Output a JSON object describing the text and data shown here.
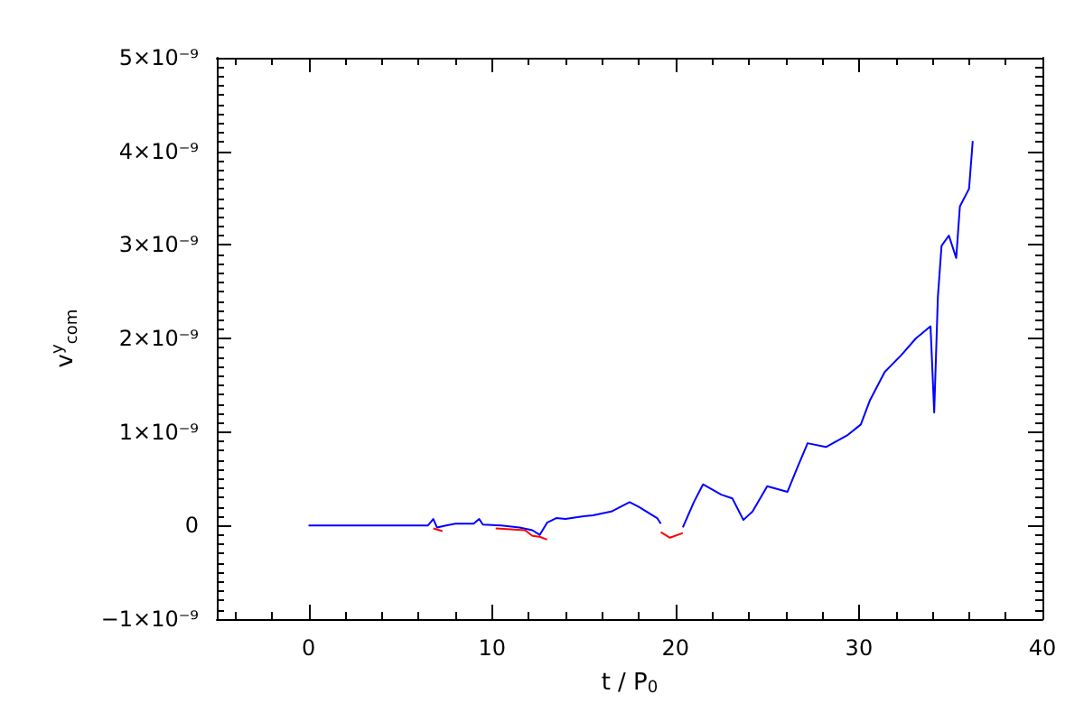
{
  "chart_data": {
    "type": "line",
    "xlabel": "t / P$_{0}$",
    "ylabel": "v$^{y}$$_{com}$",
    "xlim": [
      -5,
      40
    ],
    "xticks": [
      0,
      10,
      20,
      30,
      40
    ],
    "ylim": [
      -1e-09,
      5e-09
    ],
    "yticks": [
      {
        "value": -1e-09,
        "label": "−1×10⁻⁹"
      },
      0,
      {
        "value": 1e-09,
        "label": "1×10⁻⁹"
      },
      {
        "value": 2e-09,
        "label": "2×10⁻⁹"
      },
      {
        "value": 3e-09,
        "label": "3×10⁻⁹"
      },
      {
        "value": 4e-09,
        "label": "4×10⁻⁹"
      },
      {
        "value": 5e-09,
        "label": "5×10⁻⁹"
      }
    ],
    "grid": false,
    "marker": "none",
    "line_style": "solid",
    "series": [
      {
        "color": "#0000ff",
        "x": [
          0,
          3,
          6.5,
          6.8,
          7.0,
          7.5,
          8,
          9,
          9.3,
          9.5,
          10.5,
          11.5,
          12.2,
          12.6,
          13,
          13.5,
          14,
          15,
          15.5,
          16.5,
          17.5,
          18,
          19,
          19.2,
          19.6,
          20.4,
          21,
          21.5,
          22.5,
          23.1,
          23.7,
          24.2,
          25,
          26.1,
          26.6,
          27.2,
          28.2,
          29.4,
          30.1,
          30.6,
          31.4,
          32.3,
          33.1,
          33.9,
          34.1,
          34.3,
          34.5,
          34.9,
          35.3,
          35.5,
          36,
          36.2
        ],
        "values": [
          0,
          0,
          0,
          7e-11,
          -2e-11,
          0,
          2e-11,
          2e-11,
          7e-11,
          1e-11,
          0,
          -2e-11,
          -5e-11,
          -1e-10,
          3e-11,
          8e-11,
          7e-11,
          1e-10,
          1.1e-10,
          1.5e-10,
          2.5e-10,
          2e-10,
          8e-11,
          2e-11,
          null,
          -2e-11,
          2.5e-10,
          4.4e-10,
          3.3e-10,
          2.9e-10,
          6e-11,
          1.5e-10,
          4.2e-10,
          3.6e-10,
          6e-10,
          8.8e-10,
          8.4e-10,
          9.7e-10,
          1.08e-09,
          1.34e-09,
          1.64e-09,
          1.82e-09,
          2e-09,
          2.13e-09,
          1.21e-09,
          2.44e-09,
          2.99e-09,
          3.1e-09,
          2.86e-09,
          3.41e-09,
          3.6e-09,
          4.11e-09
        ]
      },
      {
        "color": "#ff0000",
        "x": [
          6.8,
          7.3,
          8,
          10.2,
          11,
          11.8,
          12.2,
          12.6,
          13
        ],
        "values": [
          -3e-11,
          -6e-11,
          null,
          -3e-11,
          -4e-11,
          -5e-11,
          -1.1e-10,
          -1.2e-10,
          -1.5e-10
        ]
      },
      {
        "color": "#ff0000",
        "x": [
          19.2,
          19.7,
          20.4
        ],
        "values": [
          -7e-11,
          -1.3e-10,
          -8e-11
        ]
      }
    ]
  }
}
